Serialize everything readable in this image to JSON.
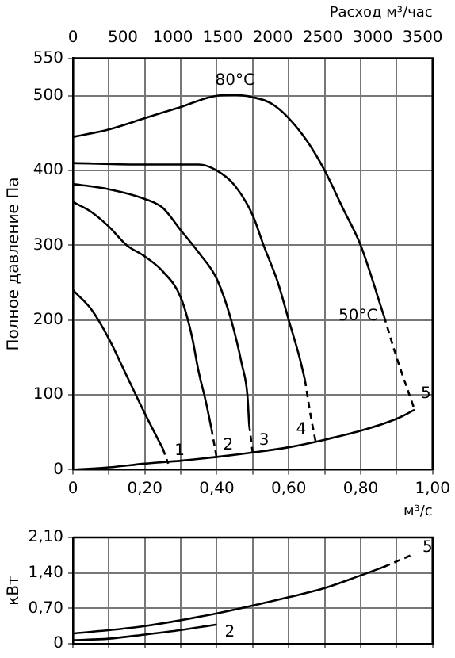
{
  "chart_data": [
    {
      "type": "line",
      "ylabel": "Полное давление Па",
      "xlabel": "м³/с",
      "x2label": "Расход м³/час",
      "xlim": [
        0,
        1
      ],
      "xticks": [
        0,
        {
          "value": 0.1,
          "label": null
        },
        {
          "value": 0.2,
          "label": "0,20"
        },
        {
          "value": 0.3,
          "label": null
        },
        {
          "value": 0.4,
          "label": "0,40"
        },
        {
          "value": 0.5,
          "label": null
        },
        {
          "value": 0.6,
          "label": "0,60"
        },
        {
          "value": 0.7,
          "label": null
        },
        {
          "value": 0.8,
          "label": "0,80"
        },
        {
          "value": 0.9,
          "label": null
        },
        {
          "value": 1,
          "label": "1,00"
        }
      ],
      "x2lim": [
        0,
        3600
      ],
      "x2ticks": [
        0,
        500,
        1000,
        1500,
        2000,
        2500,
        3000,
        3500
      ],
      "ylim": [
        0,
        550
      ],
      "yticks": [
        0,
        100,
        200,
        300,
        400,
        500,
        550
      ],
      "grid": true,
      "legend": false,
      "marker": "none",
      "series": [
        {
          "color": "#000000",
          "line_style": "solid",
          "x": [
            0,
            0.1,
            0.2,
            0.3,
            0.4,
            0.45,
            0.5,
            0.55,
            0.6,
            0.65,
            0.7,
            0.75,
            0.8,
            0.865
          ],
          "values": [
            445,
            455,
            470,
            485,
            500,
            501,
            498,
            490,
            470,
            440,
            400,
            350,
            300,
            205
          ]
        },
        {
          "color": "#000000",
          "line_style": "dashed",
          "x": [
            0.865,
            0.9,
            0.95
          ],
          "values": [
            205,
            150,
            80
          ]
        },
        {
          "color": "#000000",
          "line_style": "solid",
          "x": [
            0,
            0.2,
            0.35,
            0.4,
            0.45,
            0.5,
            0.53,
            0.57,
            0.6,
            0.63,
            0.645
          ],
          "values": [
            410,
            408,
            408,
            400,
            380,
            340,
            300,
            250,
            200,
            150,
            120
          ]
        },
        {
          "color": "#000000",
          "line_style": "dashed",
          "x": [
            0.645,
            0.66,
            0.675
          ],
          "values": [
            120,
            75,
            37
          ]
        },
        {
          "color": "#000000",
          "line_style": "solid",
          "x": [
            0,
            0.1,
            0.2,
            0.25,
            0.3,
            0.35,
            0.4,
            0.44,
            0.47,
            0.485,
            0.49
          ],
          "values": [
            382,
            375,
            362,
            350,
            320,
            290,
            255,
            200,
            140,
            100,
            60
          ]
        },
        {
          "color": "#000000",
          "line_style": "dashed",
          "x": [
            0.49,
            0.5
          ],
          "values": [
            60,
            22
          ]
        },
        {
          "color": "#000000",
          "line_style": "solid",
          "x": [
            0,
            0.05,
            0.1,
            0.15,
            0.2,
            0.25,
            0.3,
            0.33,
            0.35,
            0.37,
            0.385
          ],
          "values": [
            358,
            345,
            325,
            300,
            285,
            265,
            230,
            180,
            130,
            90,
            55
          ]
        },
        {
          "color": "#000000",
          "line_style": "dashed",
          "x": [
            0.385,
            0.4
          ],
          "values": [
            55,
            15
          ]
        },
        {
          "color": "#000000",
          "line_style": "solid",
          "x": [
            0,
            0.05,
            0.1,
            0.15,
            0.2,
            0.25
          ],
          "values": [
            240,
            215,
            175,
            125,
            75,
            28
          ]
        },
        {
          "color": "#000000",
          "line_style": "dashed",
          "x": [
            0.25,
            0.265
          ],
          "values": [
            28,
            8
          ]
        },
        {
          "color": "#000000",
          "line_style": "solid",
          "x": [
            0,
            0.1,
            0.2,
            0.3,
            0.4,
            0.5,
            0.6,
            0.7,
            0.8,
            0.9,
            0.95
          ],
          "values": [
            0,
            3,
            8,
            12,
            17,
            23,
            30,
            40,
            52,
            68,
            80
          ]
        }
      ],
      "annotations": [
        {
          "text": "80°C",
          "x": 0.45,
          "y": 501
        },
        {
          "text": "50°C",
          "x": 0.865,
          "y": 205
        },
        {
          "text": "1",
          "x": 0.265,
          "y": 8
        },
        {
          "text": "2",
          "x": 0.4,
          "y": 15
        },
        {
          "text": "3",
          "x": 0.5,
          "y": 22
        },
        {
          "text": "4",
          "x": 0.675,
          "y": 37
        },
        {
          "text": "5",
          "x": 0.95,
          "y": 80
        }
      ]
    },
    {
      "type": "line",
      "ylabel": "кВт",
      "tick_labels": "y",
      "xlim": [
        0,
        1
      ],
      "xticks": [
        0,
        0.1,
        0.2,
        0.3,
        0.4,
        0.5,
        0.6,
        0.7,
        0.8,
        0.9,
        1
      ],
      "ylim": [
        0,
        2.1
      ],
      "yticks": [
        0,
        {
          "value": 0.7,
          "label": "0,70"
        },
        {
          "value": 1.4,
          "label": "1,40"
        },
        {
          "value": 2.1,
          "label": "2,10"
        }
      ],
      "grid": true,
      "legend": false,
      "marker": "none",
      "series": [
        {
          "color": "#000000",
          "line_style": "solid",
          "x": [
            0,
            0.2,
            0.4,
            0.6,
            0.7,
            0.8,
            0.865
          ],
          "values": [
            0.2,
            0.35,
            0.6,
            0.92,
            1.1,
            1.35,
            1.52
          ]
        },
        {
          "color": "#000000",
          "line_style": "dashed",
          "x": [
            0.865,
            0.95
          ],
          "values": [
            1.52,
            1.78
          ]
        },
        {
          "color": "#000000",
          "line_style": "solid",
          "x": [
            0,
            0.1,
            0.2,
            0.3,
            0.4
          ],
          "values": [
            0.07,
            0.1,
            0.18,
            0.27,
            0.38
          ]
        }
      ],
      "annotations": [
        {
          "text": "5",
          "x": 0.95,
          "y": 1.78
        },
        {
          "text": "2",
          "x": 0.4,
          "y": 0.38
        }
      ]
    }
  ]
}
